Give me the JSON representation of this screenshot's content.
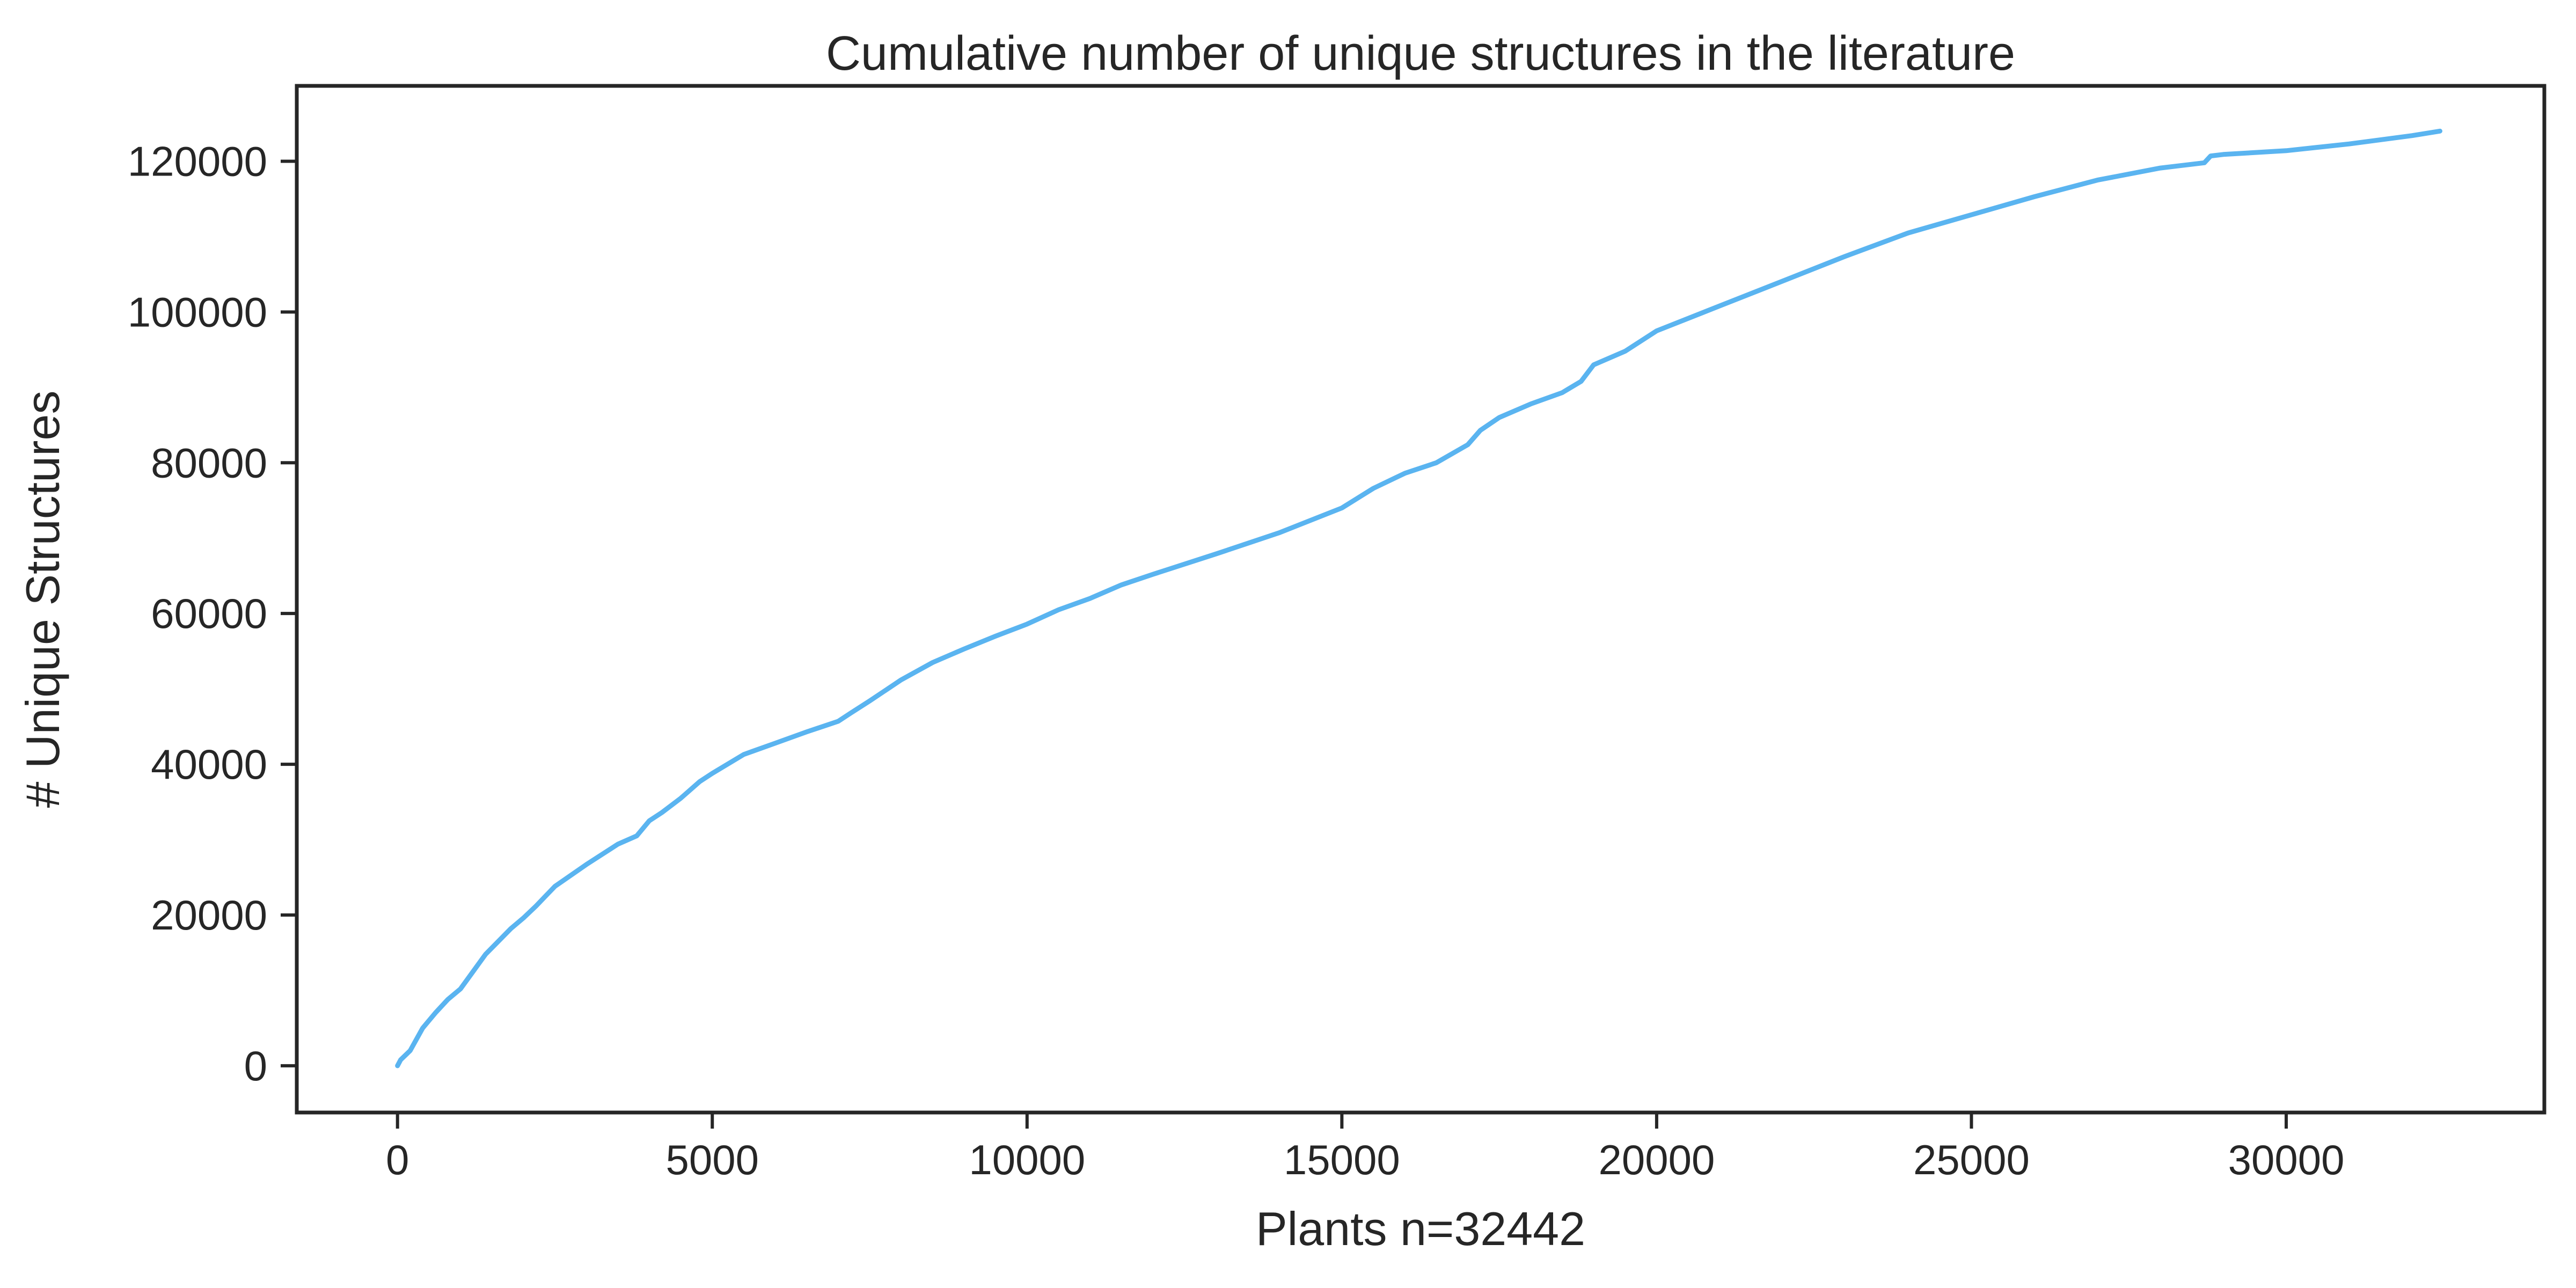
{
  "chart_data": {
    "type": "line",
    "title": "Cumulative number of unique structures in the literature",
    "xlabel": "Plants n=32442",
    "ylabel": "# Unique Structures",
    "xlim": [
      -1600,
      34100
    ],
    "ylim": [
      -6200,
      130000
    ],
    "xticks": [
      0,
      5000,
      10000,
      15000,
      20000,
      25000,
      30000
    ],
    "yticks": [
      0,
      20000,
      40000,
      60000,
      80000,
      100000,
      120000
    ],
    "xtick_labels": [
      "0",
      "5000",
      "10000",
      "15000",
      "20000",
      "25000",
      "30000"
    ],
    "ytick_labels": [
      "0",
      "20000",
      "40000",
      "60000",
      "80000",
      "100000",
      "120000"
    ],
    "grid": false,
    "legend": "none",
    "colors": {
      "line": "#5ab4f0",
      "axes": "#262626"
    },
    "series": [
      {
        "x": [
          0,
          50,
          200,
          400,
          600,
          800,
          1000,
          1200,
          1400,
          1600,
          1800,
          2000,
          2200,
          2500,
          3000,
          3500,
          3800,
          4000,
          4200,
          4500,
          4800,
          5000,
          5500,
          6000,
          6500,
          7000,
          7200,
          7500,
          8000,
          8500,
          9000,
          9500,
          10000,
          10500,
          11000,
          11500,
          12000,
          13000,
          14000,
          15000,
          15500,
          16000,
          16500,
          17000,
          17200,
          17500,
          18000,
          18500,
          18800,
          19000,
          19500,
          20000,
          21000,
          22000,
          23000,
          24000,
          25000,
          26000,
          27000,
          28000,
          28700,
          28800,
          29000,
          30000,
          31000,
          32000,
          32442
        ],
        "y": [
          0,
          800,
          2000,
          5000,
          7000,
          8800,
          10200,
          12500,
          14800,
          16500,
          18200,
          19600,
          21200,
          23800,
          26700,
          29400,
          30500,
          32500,
          33600,
          35500,
          37700,
          38800,
          41300,
          42800,
          44300,
          45700,
          46800,
          48400,
          51200,
          53500,
          55300,
          57000,
          58600,
          60500,
          62000,
          63800,
          65200,
          67900,
          70700,
          74000,
          76600,
          78600,
          80000,
          82400,
          84300,
          86000,
          87800,
          89300,
          90800,
          93000,
          94800,
          97500,
          100800,
          104100,
          107400,
          110500,
          112900,
          115300,
          117500,
          119100,
          119800,
          120700,
          120900,
          121400,
          122300,
          123400,
          124000
        ]
      }
    ]
  }
}
